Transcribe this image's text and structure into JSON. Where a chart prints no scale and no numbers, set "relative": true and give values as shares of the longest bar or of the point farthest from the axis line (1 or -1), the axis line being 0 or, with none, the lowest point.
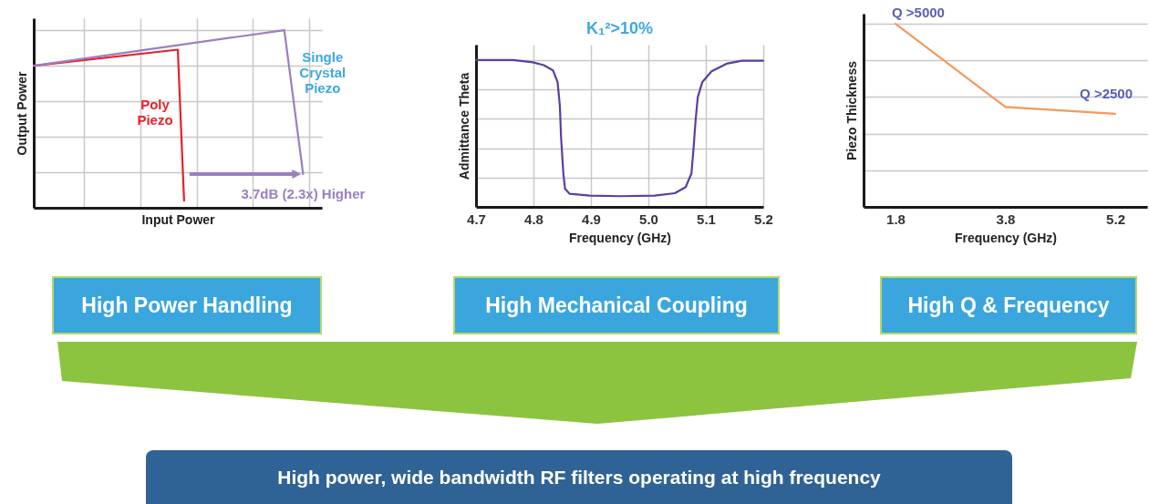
{
  "chart_data": [
    {
      "type": "line",
      "relative": true,
      "xlabel": "Input Power",
      "ylabel": "Output Power",
      "categories": [
        null,
        null,
        null,
        null,
        null,
        null,
        null,
        null,
        null,
        null,
        null,
        null,
        null,
        null,
        null,
        null,
        null,
        null,
        null,
        null,
        null,
        null,
        null,
        null,
        null,
        null,
        null,
        null,
        null,
        null,
        null,
        null,
        null,
        null,
        null,
        null,
        null,
        null,
        null,
        null,
        null,
        null,
        null,
        null,
        null,
        null,
        null
      ],
      "grid": true,
      "tick_labels": false,
      "series": [
        {
          "name": "Poly Piezo",
          "color": "#e8202a",
          "values": [
            0.8,
            null,
            null,
            null,
            null,
            null,
            null,
            null,
            null,
            null,
            null,
            null,
            null,
            null,
            null,
            null,
            null,
            null,
            null,
            null,
            null,
            null,
            null,
            0.89,
            0.04,
            null,
            null,
            null,
            null,
            null,
            null,
            null,
            null,
            null,
            null,
            null,
            null,
            null,
            null,
            null,
            null,
            null,
            null,
            null,
            null,
            null,
            null
          ]
        },
        {
          "name": "Single Crystal Piezo",
          "color": "#9b7fc0",
          "values": [
            0.8,
            null,
            null,
            null,
            null,
            null,
            null,
            null,
            null,
            null,
            null,
            null,
            null,
            null,
            null,
            null,
            null,
            null,
            null,
            null,
            null,
            null,
            null,
            null,
            null,
            null,
            null,
            null,
            null,
            null,
            null,
            null,
            null,
            null,
            null,
            null,
            null,
            null,
            null,
            null,
            1,
            null,
            null,
            0.19,
            null,
            null,
            null
          ]
        }
      ],
      "annotations": [
        "3.7dB (2.3x) Higher"
      ]
    },
    {
      "type": "line",
      "relative": true,
      "title": "K₁²>10%",
      "xlabel": "Frequency (GHz)",
      "ylabel": "Admittance Theta",
      "xlim": [
        4.7,
        5.2
      ],
      "xticks": [
        4.7,
        4.8,
        4.9,
        {
          "value": 5,
          "label": "5.0"
        },
        5.1,
        5.2
      ],
      "grid": true,
      "tick_labels": "x",
      "series": [
        {
          "color": "#5b3f9e",
          "x": [
            4.7,
            4.765,
            4.799,
            4.818,
            4.834,
            4.842,
            4.846,
            4.848,
            4.852,
            4.855,
            4.863,
            4.898,
            4.951,
            5.011,
            5.046,
            5.065,
            5.075,
            5.079,
            5.082,
            5.086,
            5.094,
            5.11,
            5.136,
            5.163,
            5.2
          ],
          "values": [
            1,
            1,
            0.985,
            0.965,
            0.93,
            0.85,
            0.685,
            0.477,
            0.228,
            0.124,
            0.089,
            0.077,
            0.073,
            0.077,
            0.093,
            0.135,
            0.228,
            0.415,
            0.581,
            0.747,
            0.851,
            0.923,
            0.975,
            0.996,
            0.996
          ]
        }
      ]
    },
    {
      "type": "line",
      "relative": true,
      "xlabel": "Frequency (GHz)",
      "ylabel": "Piezo Thickness",
      "categories": [
        "1.8",
        "3.8",
        "5.2"
      ],
      "grid": "y",
      "tick_labels": "x",
      "series": [
        {
          "color": "#f4995c",
          "values": [
            1,
            0.546,
            0.508
          ]
        }
      ],
      "annotations": [
        "Q >5000",
        "Q >2500"
      ]
    },
    {
      "type": "other",
      "annotations": [
        "High Power Handling",
        "High Mechanical Coupling",
        "High Q & Frequency",
        "High power, wide bandwidth RF filters operating at high frequency"
      ]
    }
  ]
}
